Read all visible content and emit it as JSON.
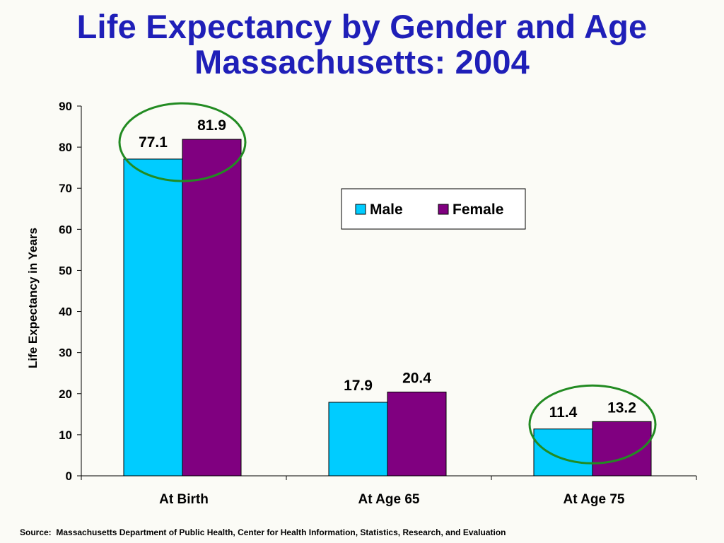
{
  "title_line1": "Life Expectancy by Gender and Age",
  "title_line2": "Massachusetts: 2004",
  "source": "Source:  Massachusetts Department of Public Health, Center for Health Information, Statistics, Research, and Evaluation",
  "chart_data": {
    "type": "bar",
    "categories": [
      "At Birth",
      "At Age 65",
      "At Age 75"
    ],
    "series": [
      {
        "name": "Male",
        "values": [
          77.1,
          17.9,
          11.4
        ],
        "color": "#00CCFF"
      },
      {
        "name": "Female",
        "values": [
          81.9,
          20.4,
          13.2
        ],
        "color": "#800080"
      }
    ],
    "data_labels": [
      [
        "77.1",
        "17.9",
        "11.4"
      ],
      [
        "81.9",
        "20.4",
        "13.2"
      ]
    ],
    "ylabel": "Life Expectancy in Years",
    "ylim": [
      0,
      90
    ],
    "yticks": [
      0,
      10,
      20,
      30,
      40,
      50,
      60,
      70,
      80,
      90
    ],
    "legend_position": "upper-right inside plot",
    "grid": false,
    "highlight_circles": {
      "categories": [
        "At Birth",
        "At Age 75"
      ],
      "color": "#228B22"
    }
  }
}
